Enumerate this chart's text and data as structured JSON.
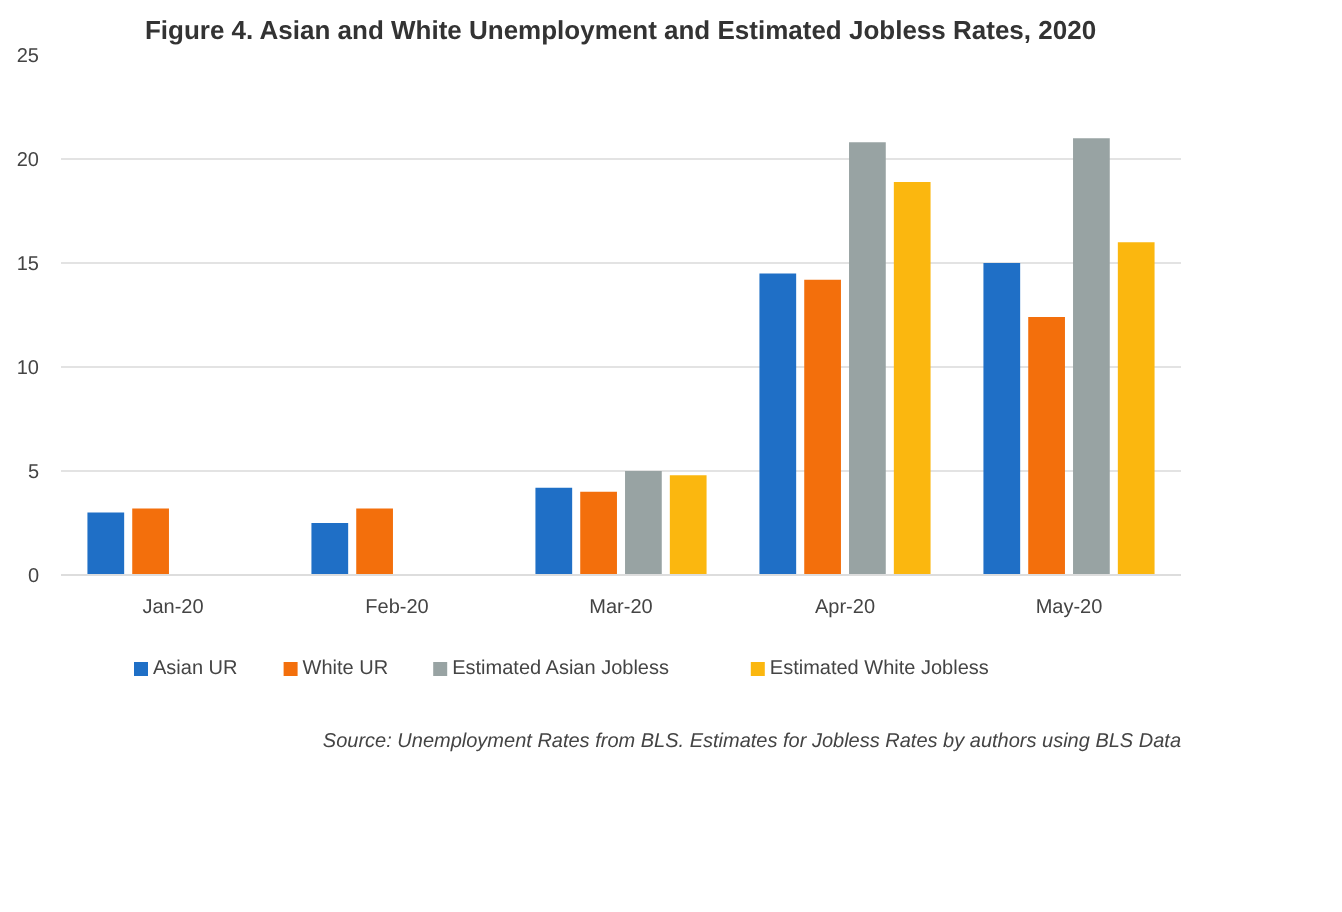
{
  "chart_data": {
    "type": "bar",
    "title": "Figure 4. Asian and White Unemployment and Estimated Jobless Rates, 2020",
    "categories": [
      "Jan-20",
      "Feb-20",
      "Mar-20",
      "Apr-20",
      "May-20"
    ],
    "series": [
      {
        "name": "Asian UR",
        "color": "#1f6fc6",
        "values": [
          3.0,
          2.5,
          4.2,
          14.5,
          15.0
        ]
      },
      {
        "name": "White UR",
        "color": "#f36f0c",
        "values": [
          3.2,
          3.2,
          4.0,
          14.2,
          12.4
        ]
      },
      {
        "name": "Estimated Asian Jobless",
        "color": "#98a3a3",
        "values": [
          null,
          null,
          5.0,
          20.8,
          21.0
        ]
      },
      {
        "name": "Estimated White Jobless",
        "color": "#fbb70f",
        "values": [
          null,
          null,
          4.8,
          18.9,
          16.0
        ]
      }
    ],
    "ylim": [
      0,
      25
    ],
    "yticks": [
      0,
      5,
      10,
      15,
      20,
      25
    ],
    "grid": "y",
    "legend": "bottom",
    "annotations": [
      "Source: Unemployment Rates from BLS. Estimates for Jobless Rates by authors using BLS Data"
    ]
  }
}
